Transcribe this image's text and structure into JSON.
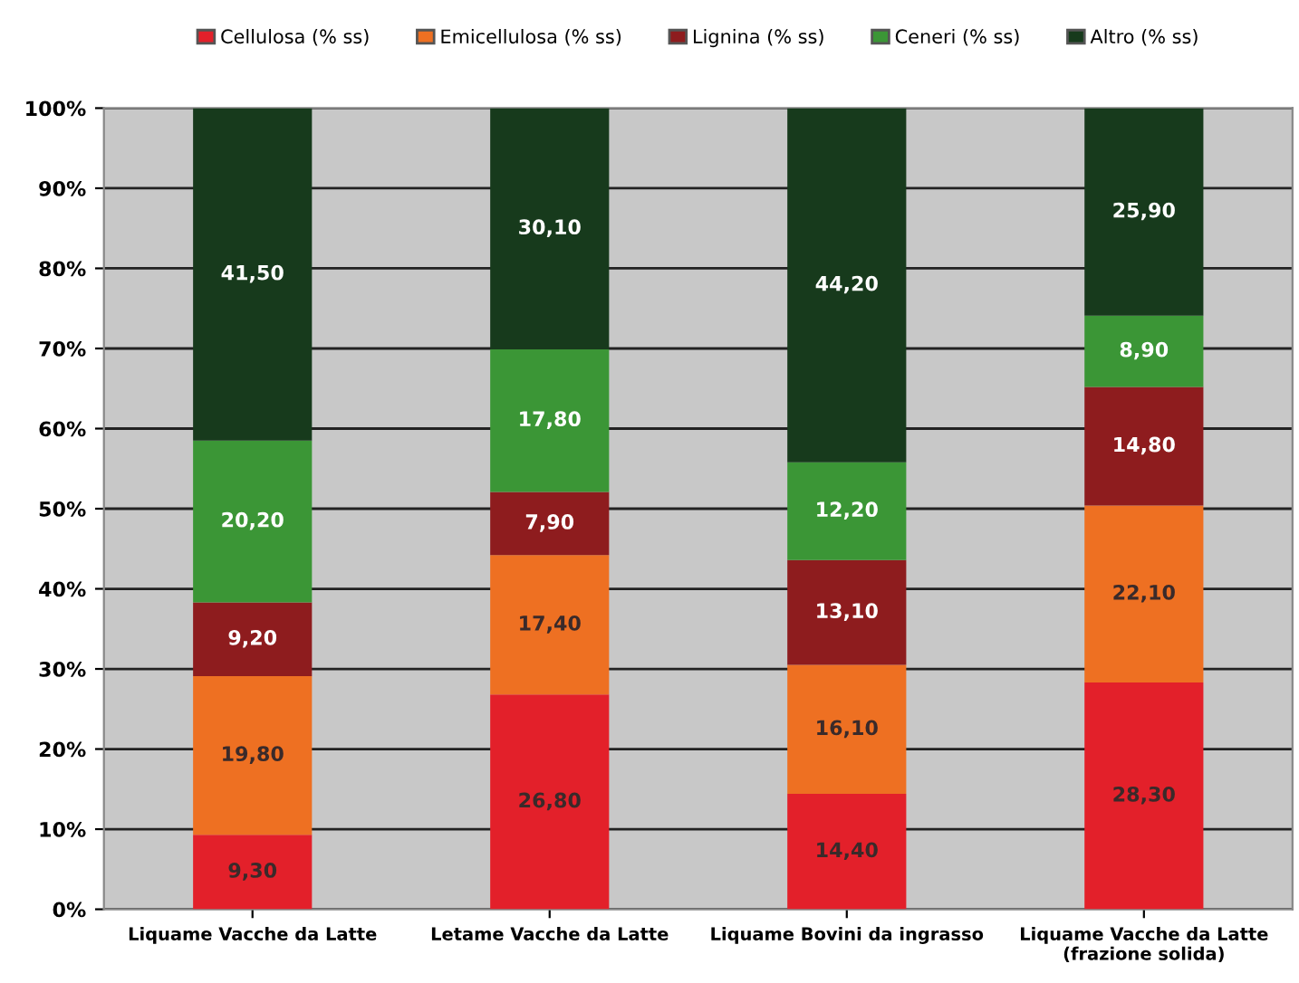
{
  "chart_data": {
    "type": "bar",
    "stacked": true,
    "categories": [
      "Liquame Vacche da Latte",
      "Letame Vacche da Latte",
      "Liquame Bovini da ingrasso",
      "Liquame Vacche da Latte\n(frazione solida)"
    ],
    "series": [
      {
        "name": "Cellulosa (% ss)",
        "color": "#e3202a",
        "values": [
          9.3,
          26.8,
          14.4,
          28.3
        ],
        "value_labels": [
          "9,30",
          "26,80",
          "14,40",
          "28,30"
        ]
      },
      {
        "name": "Emicellulosa (% ss)",
        "color": "#ee7022",
        "values": [
          19.8,
          17.4,
          16.1,
          22.1
        ],
        "value_labels": [
          "19,80",
          "17,40",
          "16,10",
          "22,10"
        ]
      },
      {
        "name": "Lignina (% ss)",
        "color": "#8e1c1e",
        "values": [
          9.2,
          7.9,
          13.1,
          14.8
        ],
        "value_labels": [
          "9,20",
          "7,90",
          "13,10",
          "14,80"
        ]
      },
      {
        "name": "Ceneri (% ss)",
        "color": "#3b9636",
        "values": [
          20.2,
          17.8,
          12.2,
          8.9
        ],
        "value_labels": [
          "20,20",
          "17,80",
          "12,20",
          "8,90"
        ]
      },
      {
        "name": "Altro (% ss)",
        "color": "#173a1c",
        "values": [
          41.5,
          30.1,
          44.2,
          25.9
        ],
        "value_labels": [
          "41,50",
          "30,10",
          "44,20",
          "25,90"
        ]
      }
    ],
    "ylim": [
      0,
      100
    ],
    "yticks": [
      {
        "value": 0,
        "label": "0%"
      },
      {
        "value": 10,
        "label": "10%"
      },
      {
        "value": 20,
        "label": "20%"
      },
      {
        "value": 30,
        "label": "30%"
      },
      {
        "value": 40,
        "label": "40%"
      },
      {
        "value": 50,
        "label": "50%"
      },
      {
        "value": 60,
        "label": "60%"
      },
      {
        "value": 70,
        "label": "70%"
      },
      {
        "value": 80,
        "label": "80%"
      },
      {
        "value": 90,
        "label": "90%"
      },
      {
        "value": 100,
        "label": "100%"
      }
    ],
    "grid": "y",
    "legend": "top"
  }
}
